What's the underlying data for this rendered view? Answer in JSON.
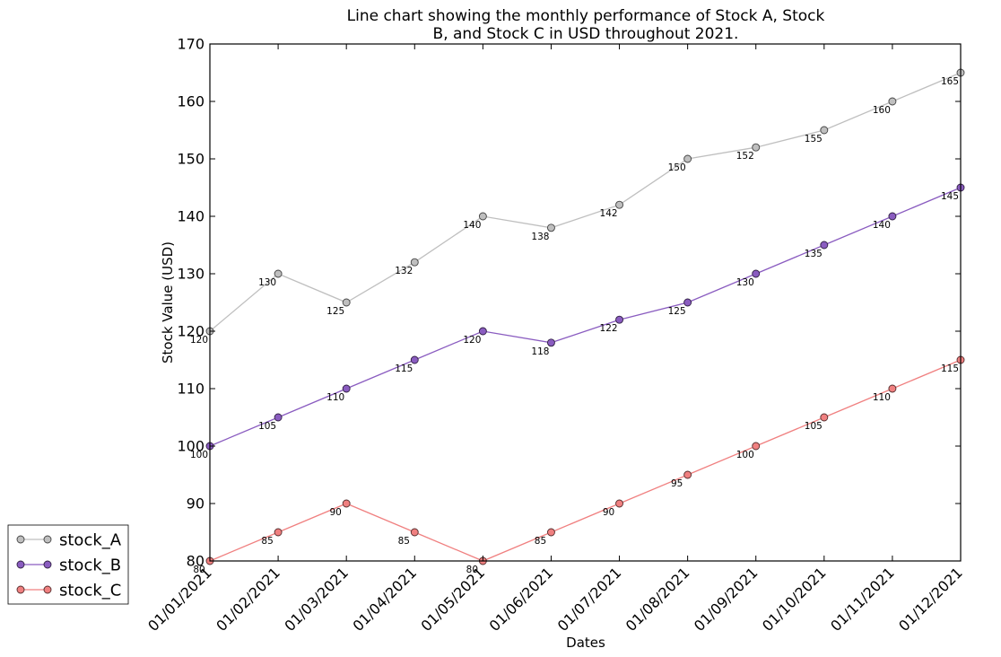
{
  "chart_data": {
    "type": "line",
    "title": "Line chart showing the monthly performance of Stock A, Stock B, and Stock C in USD throughout 2021.",
    "title_lines": [
      "Line chart showing the monthly performance of Stock A, Stock",
      "B, and Stock C in USD throughout 2021."
    ],
    "xlabel": "Dates",
    "ylabel": "Stock Value (USD)",
    "ylim": [
      80,
      170
    ],
    "yticks": [
      80,
      90,
      100,
      110,
      120,
      130,
      140,
      150,
      160,
      170
    ],
    "x": [
      "01/01/2021",
      "01/02/2021",
      "01/03/2021",
      "01/04/2021",
      "01/05/2021",
      "01/06/2021",
      "01/07/2021",
      "01/08/2021",
      "01/09/2021",
      "01/10/2021",
      "01/11/2021",
      "01/12/2021"
    ],
    "grid": false,
    "legend_position": "lower-left, outside plot",
    "series": [
      {
        "name": "stock_A",
        "color": "#bfbfbf",
        "values": [
          120,
          130,
          125,
          132,
          140,
          138,
          142,
          150,
          152,
          155,
          160,
          165
        ]
      },
      {
        "name": "stock_B",
        "color": "#8a5cc0",
        "values": [
          100,
          105,
          110,
          115,
          120,
          118,
          122,
          125,
          130,
          135,
          140,
          145
        ]
      },
      {
        "name": "stock_C",
        "color": "#f08080",
        "values": [
          80,
          85,
          90,
          85,
          80,
          85,
          90,
          95,
          100,
          105,
          110,
          115
        ]
      }
    ]
  }
}
